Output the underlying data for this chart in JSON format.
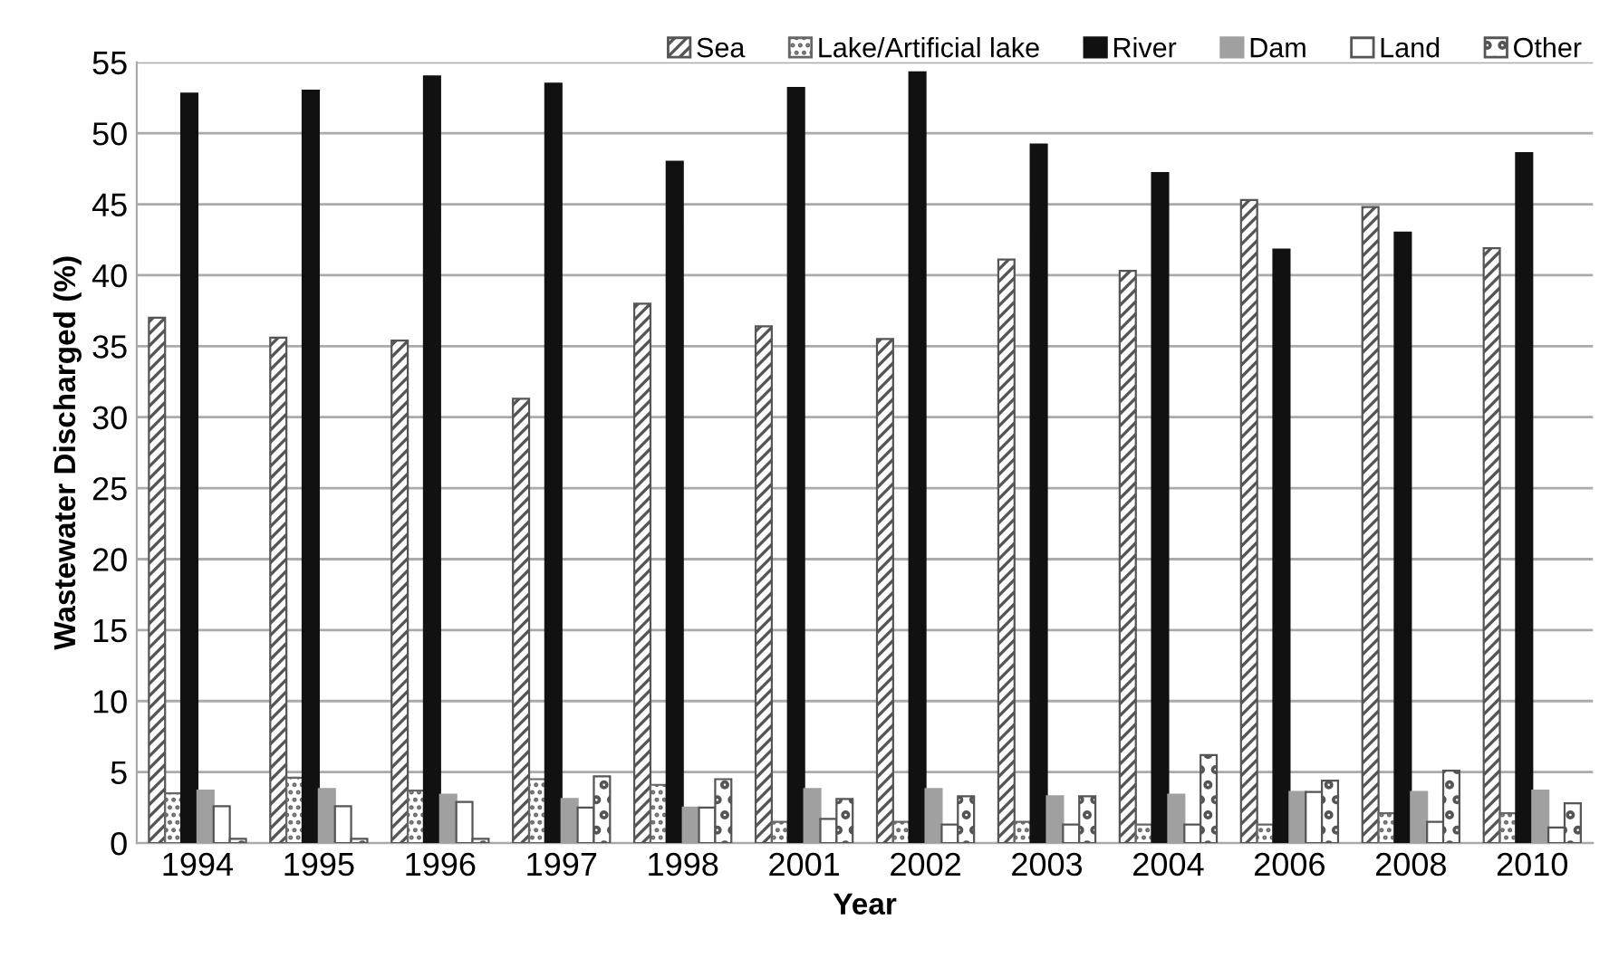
{
  "chart_data": {
    "type": "bar",
    "xlabel": "Year",
    "ylabel": "Wastewater Discharged (%)",
    "categories": [
      "1994",
      "1995",
      "1996",
      "1997",
      "1998",
      "2001",
      "2002",
      "2003",
      "2004",
      "2006",
      "2008",
      "2010"
    ],
    "series": [
      {
        "name": "Sea",
        "color": "#555555",
        "values": [
          37,
          35.6,
          35.4,
          31.3,
          38,
          36.4,
          35.5,
          41.1,
          40.3,
          45.3,
          44.8,
          41.9
        ]
      },
      {
        "name": "Lake/Artificial lake",
        "color": "#666666",
        "values": [
          3.5,
          4.6,
          3.7,
          4.5,
          4.1,
          1.5,
          1.5,
          1.5,
          1.3,
          1.3,
          2.1,
          2.1
        ]
      },
      {
        "name": "River",
        "color": "#111111",
        "values": [
          52.8,
          53,
          54,
          53.5,
          48,
          53.2,
          54.3,
          49.2,
          47.2,
          41.8,
          43,
          48.6
        ]
      },
      {
        "name": "Dam",
        "color": "#a0a0a0",
        "values": [
          3.7,
          3.8,
          3.4,
          3.1,
          2.5,
          3.8,
          3.8,
          3.3,
          3.4,
          3.6,
          3.6,
          3.7
        ]
      },
      {
        "name": "Land",
        "color": "#ffffff",
        "values": [
          2.6,
          2.6,
          2.9,
          2.5,
          2.5,
          1.7,
          1.3,
          1.3,
          1.3,
          3.6,
          1.5,
          1.1
        ]
      },
      {
        "name": "Other",
        "color": "#555555",
        "values": [
          0.3,
          0.3,
          0.3,
          4.7,
          4.5,
          3.1,
          3.3,
          3.3,
          6.2,
          4.4,
          5.1,
          2.8
        ]
      }
    ],
    "ylim": [
      0,
      55
    ],
    "yticks": [
      0,
      5,
      10,
      15,
      20,
      25,
      30,
      35,
      40,
      45,
      50,
      55
    ],
    "grid": "y",
    "legend": "top right"
  }
}
